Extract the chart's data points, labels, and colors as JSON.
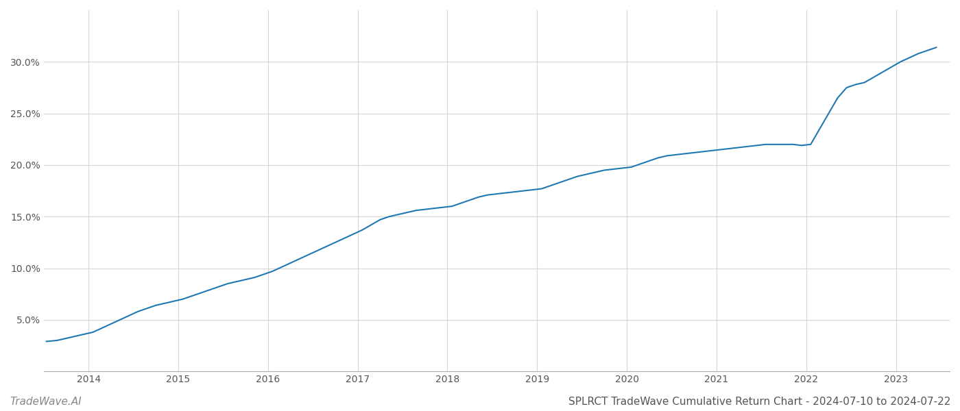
{
  "title": "SPLRCT TradeWave Cumulative Return Chart - 2024-07-10 to 2024-07-22",
  "watermark": "TradeWave.AI",
  "line_color": "#1f77b4",
  "background_color": "#ffffff",
  "grid_color": "#cccccc",
  "x_years": [
    2014,
    2015,
    2016,
    2017,
    2018,
    2019,
    2020,
    2021,
    2022,
    2023
  ],
  "x_data": [
    2013.53,
    2013.65,
    2013.75,
    2013.85,
    2013.95,
    2014.05,
    2014.15,
    2014.25,
    2014.35,
    2014.45,
    2014.55,
    2014.65,
    2014.75,
    2014.85,
    2014.95,
    2015.05,
    2015.15,
    2015.25,
    2015.35,
    2015.45,
    2015.55,
    2015.65,
    2015.75,
    2015.85,
    2015.95,
    2016.05,
    2016.15,
    2016.25,
    2016.35,
    2016.45,
    2016.55,
    2016.65,
    2016.75,
    2016.85,
    2016.95,
    2017.05,
    2017.15,
    2017.25,
    2017.35,
    2017.45,
    2017.55,
    2017.65,
    2017.75,
    2017.85,
    2017.95,
    2018.05,
    2018.15,
    2018.25,
    2018.35,
    2018.45,
    2018.55,
    2018.65,
    2018.75,
    2018.85,
    2018.95,
    2019.05,
    2019.15,
    2019.25,
    2019.35,
    2019.45,
    2019.55,
    2019.65,
    2019.75,
    2019.85,
    2019.95,
    2020.05,
    2020.15,
    2020.25,
    2020.35,
    2020.45,
    2020.55,
    2020.65,
    2020.75,
    2020.85,
    2020.95,
    2021.05,
    2021.15,
    2021.25,
    2021.35,
    2021.45,
    2021.55,
    2021.65,
    2021.75,
    2021.85,
    2021.95,
    2022.05,
    2022.15,
    2022.25,
    2022.35,
    2022.45,
    2022.55,
    2022.65,
    2022.75,
    2022.85,
    2022.95,
    2023.05,
    2023.15,
    2023.25,
    2023.35,
    2023.45
  ],
  "y_data": [
    2.9,
    3.0,
    3.2,
    3.4,
    3.6,
    3.8,
    4.2,
    4.6,
    5.0,
    5.4,
    5.8,
    6.1,
    6.4,
    6.6,
    6.8,
    7.0,
    7.3,
    7.6,
    7.9,
    8.2,
    8.5,
    8.7,
    8.9,
    9.1,
    9.4,
    9.7,
    10.1,
    10.5,
    10.9,
    11.3,
    11.7,
    12.1,
    12.5,
    12.9,
    13.3,
    13.7,
    14.2,
    14.7,
    15.0,
    15.2,
    15.4,
    15.6,
    15.7,
    15.8,
    15.9,
    16.0,
    16.3,
    16.6,
    16.9,
    17.1,
    17.2,
    17.3,
    17.4,
    17.5,
    17.6,
    17.7,
    18.0,
    18.3,
    18.6,
    18.9,
    19.1,
    19.3,
    19.5,
    19.6,
    19.7,
    19.8,
    20.1,
    20.4,
    20.7,
    20.9,
    21.0,
    21.1,
    21.2,
    21.3,
    21.4,
    21.5,
    21.6,
    21.7,
    21.8,
    21.9,
    22.0,
    22.0,
    22.0,
    22.0,
    21.9,
    22.0,
    23.5,
    25.0,
    26.5,
    27.5,
    27.8,
    28.0,
    28.5,
    29.0,
    29.5,
    30.0,
    30.4,
    30.8,
    31.1,
    31.4
  ],
  "ylim": [
    0,
    35
  ],
  "yticks": [
    5.0,
    10.0,
    15.0,
    20.0,
    25.0,
    30.0
  ],
  "xlim": [
    2013.5,
    2023.6
  ],
  "line_width": 1.5,
  "title_fontsize": 11,
  "tick_fontsize": 10,
  "watermark_fontsize": 11
}
